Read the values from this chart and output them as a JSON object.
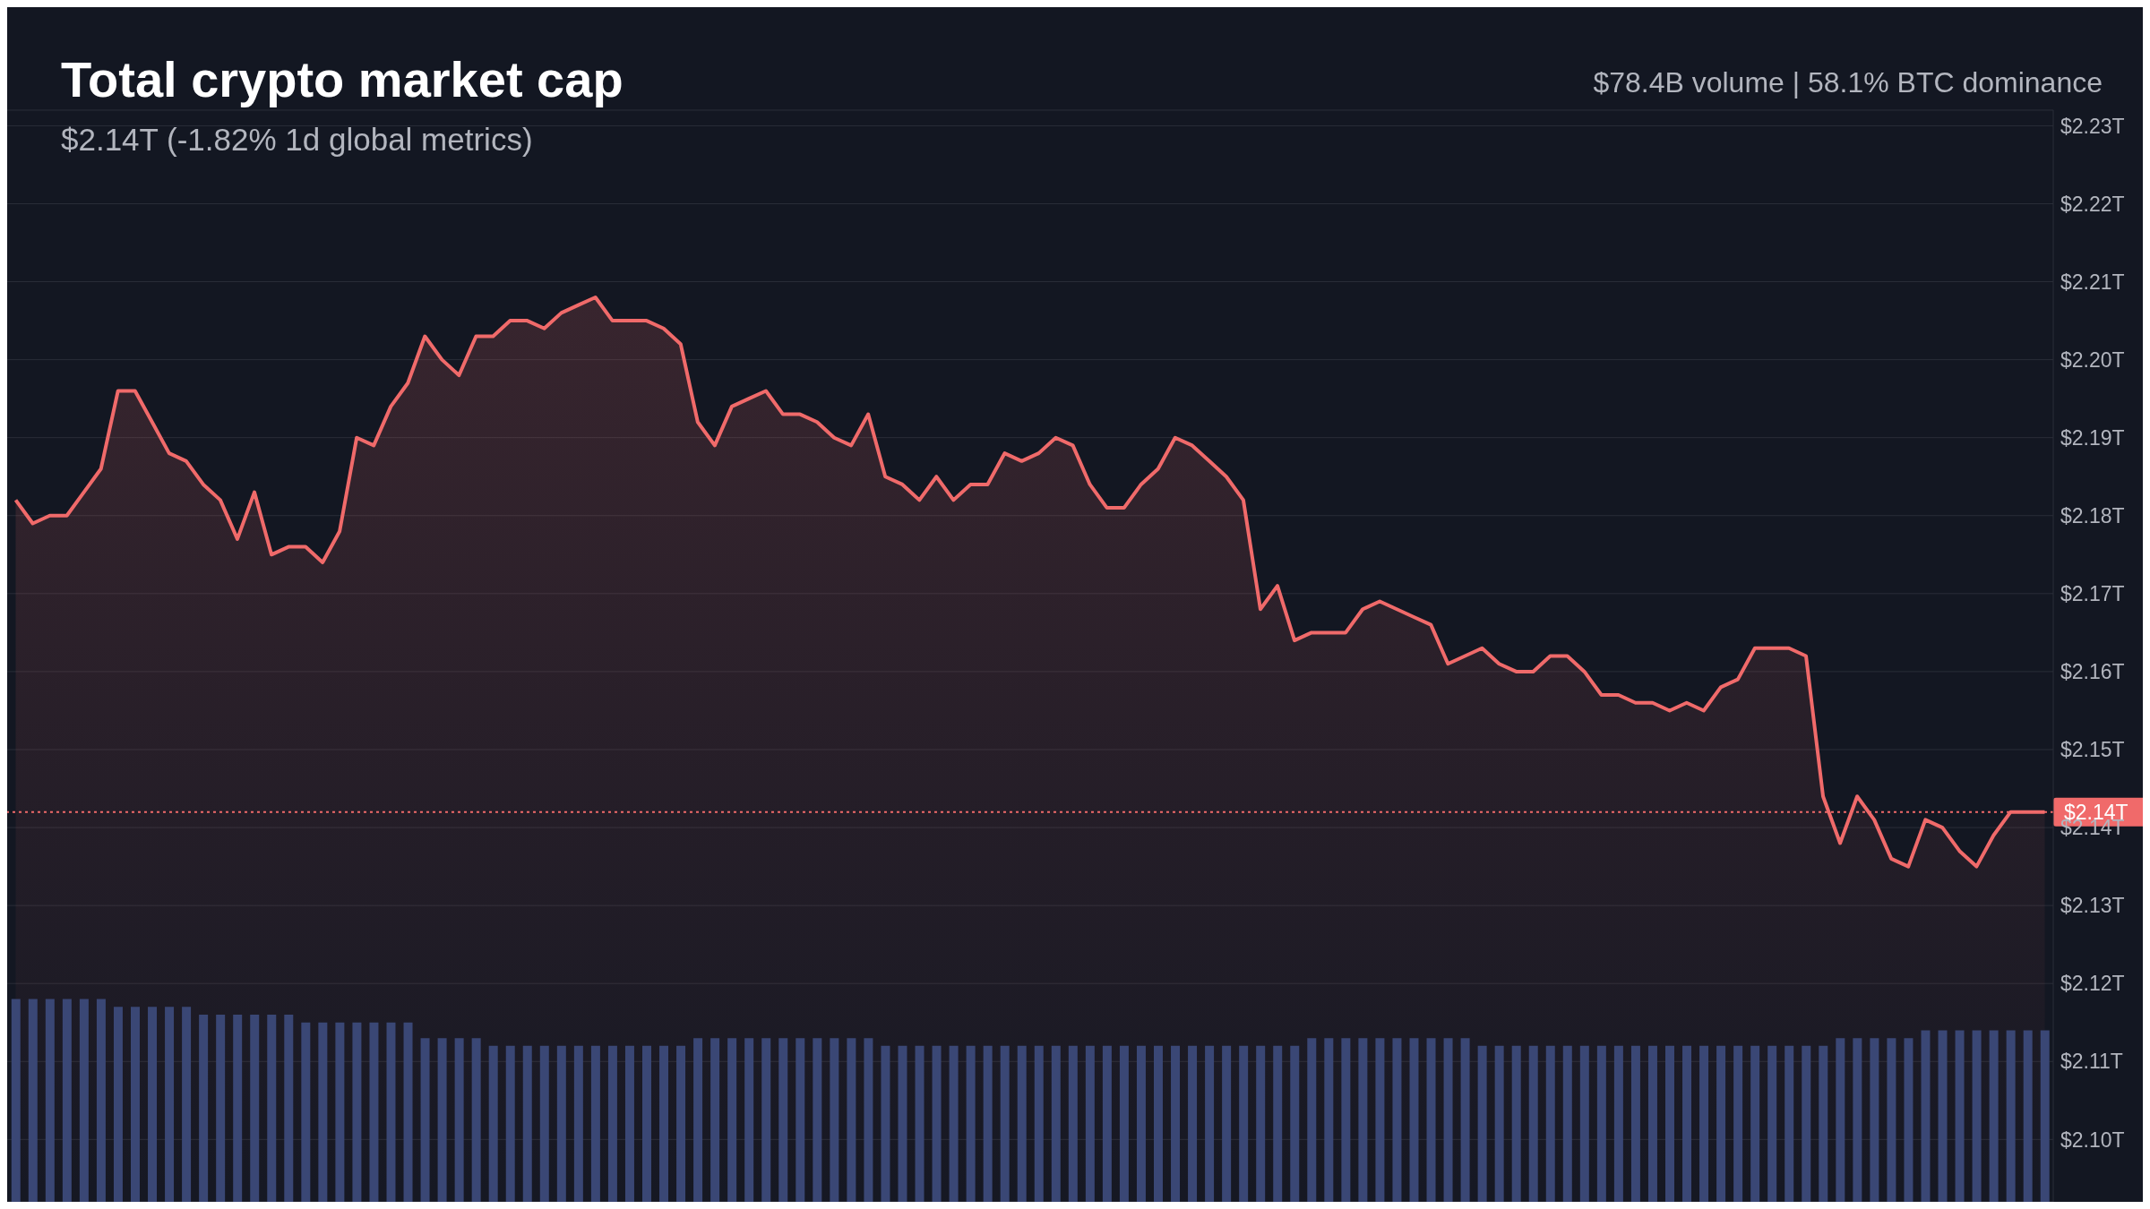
{
  "chart_data": {
    "type": "area",
    "title": "Total crypto market cap",
    "subtitle": "$2.14T (-1.82% 1d global metrics)",
    "annotations": [
      "$78.4B volume | 58.1% BTC dominance"
    ],
    "categories": [
      null,
      null,
      null,
      null,
      null,
      null,
      null,
      null,
      null,
      null,
      null,
      null,
      null,
      null,
      null,
      null,
      null,
      null,
      null,
      null,
      null,
      null,
      null,
      null,
      null,
      null,
      null,
      null,
      null,
      null,
      null,
      null,
      null,
      null,
      null,
      null,
      null,
      null,
      null,
      null,
      null,
      null,
      null,
      null,
      null,
      null,
      null,
      null,
      null,
      null,
      null,
      null,
      null,
      null,
      null,
      null,
      null,
      null,
      null,
      null,
      null,
      null,
      null,
      null,
      null,
      null,
      null,
      null,
      null,
      null,
      null,
      null,
      null,
      null,
      null,
      null,
      null,
      null,
      null,
      null,
      null,
      null,
      null,
      null,
      null,
      null,
      null,
      null,
      null,
      null,
      null,
      null,
      null,
      null,
      null,
      null,
      null,
      null,
      null,
      null,
      null,
      null,
      null,
      null,
      null,
      null,
      null,
      null,
      null,
      null,
      null,
      null,
      null,
      null,
      null,
      null,
      null,
      null,
      null,
      null
    ],
    "series": [
      {
        "type": "bar",
        "color": "#3a4775",
        "values": [
          2.118,
          2.118,
          2.118,
          2.118,
          2.118,
          2.118,
          2.117,
          2.117,
          2.117,
          2.117,
          2.117,
          2.116,
          2.116,
          2.116,
          2.116,
          2.116,
          2.116,
          2.115,
          2.115,
          2.115,
          2.115,
          2.115,
          2.115,
          2.115,
          2.113,
          2.113,
          2.113,
          2.113,
          2.112,
          2.112,
          2.112,
          2.112,
          2.112,
          2.112,
          2.112,
          2.112,
          2.112,
          2.112,
          2.112,
          2.112,
          2.113,
          2.113,
          2.113,
          2.113,
          2.113,
          2.113,
          2.113,
          2.113,
          2.113,
          2.113,
          2.113,
          2.112,
          2.112,
          2.112,
          2.112,
          2.112,
          2.112,
          2.112,
          2.112,
          2.112,
          2.112,
          2.112,
          2.112,
          2.112,
          2.112,
          2.112,
          2.112,
          2.112,
          2.112,
          2.112,
          2.112,
          2.112,
          2.112,
          2.112,
          2.112,
          2.112,
          2.113,
          2.113,
          2.113,
          2.113,
          2.113,
          2.113,
          2.113,
          2.113,
          2.113,
          2.113,
          2.112,
          2.112,
          2.112,
          2.112,
          2.112,
          2.112,
          2.112,
          2.112,
          2.112,
          2.112,
          2.112,
          2.112,
          2.112,
          2.112,
          2.112,
          2.112,
          2.112,
          2.112,
          2.112,
          2.112,
          2.112,
          2.113,
          2.113,
          2.113,
          2.113,
          2.113,
          2.114,
          2.114,
          2.114,
          2.114,
          2.114,
          2.114,
          2.114,
          2.114
        ]
      },
      {
        "color": "#f06a6a",
        "values": [
          2.182,
          2.179,
          2.18,
          2.18,
          2.183,
          2.186,
          2.196,
          2.196,
          2.192,
          2.188,
          2.187,
          2.184,
          2.182,
          2.177,
          2.183,
          2.175,
          2.176,
          2.176,
          2.174,
          2.178,
          2.19,
          2.189,
          2.194,
          2.197,
          2.203,
          2.2,
          2.198,
          2.203,
          2.203,
          2.205,
          2.205,
          2.204,
          2.206,
          2.207,
          2.208,
          2.205,
          2.205,
          2.205,
          2.204,
          2.202,
          2.192,
          2.189,
          2.194,
          2.195,
          2.196,
          2.193,
          2.193,
          2.192,
          2.19,
          2.189,
          2.193,
          2.185,
          2.184,
          2.182,
          2.185,
          2.182,
          2.184,
          2.184,
          2.188,
          2.187,
          2.188,
          2.19,
          2.189,
          2.184,
          2.181,
          2.181,
          2.184,
          2.186,
          2.19,
          2.189,
          2.187,
          2.185,
          2.182,
          2.168,
          2.171,
          2.164,
          2.165,
          2.165,
          2.165,
          2.168,
          2.169,
          2.168,
          2.167,
          2.166,
          2.161,
          2.162,
          2.163,
          2.161,
          2.16,
          2.16,
          2.162,
          2.162,
          2.16,
          2.157,
          2.157,
          2.156,
          2.156,
          2.155,
          2.156,
          2.155,
          2.158,
          2.159,
          2.163,
          2.163,
          2.163,
          2.162,
          2.144,
          2.138,
          2.144,
          2.141,
          2.136,
          2.135,
          2.141,
          2.14,
          2.137,
          2.135,
          2.139,
          2.142,
          2.142,
          2.142
        ]
      }
    ],
    "ylim": [
      2.092,
      2.232
    ],
    "yticks": [
      {
        "value": 2.1,
        "label": "$2.10T"
      },
      {
        "value": 2.11,
        "label": "$2.11T"
      },
      {
        "value": 2.12,
        "label": "$2.12T"
      },
      {
        "value": 2.13,
        "label": "$2.13T"
      },
      {
        "value": 2.14,
        "label": "$2.14T"
      },
      {
        "value": 2.15,
        "label": "$2.15T"
      },
      {
        "value": 2.16,
        "label": "$2.16T"
      },
      {
        "value": 2.17,
        "label": "$2.17T"
      },
      {
        "value": 2.18,
        "label": "$2.18T"
      },
      {
        "value": 2.19,
        "label": "$2.19T"
      },
      {
        "value": 2.2,
        "label": "$2.20T"
      },
      {
        "value": 2.21,
        "label": "$2.21T"
      },
      {
        "value": 2.22,
        "label": "$2.22T"
      },
      {
        "value": 2.23,
        "label": "$2.23T"
      }
    ],
    "grid": "y",
    "tick_labels": "y",
    "ref_lines": [
      {
        "axis": "y",
        "value": 2.142,
        "label": "$2.14T",
        "color": "#f06a6a",
        "line_style": "dotted"
      }
    ]
  }
}
